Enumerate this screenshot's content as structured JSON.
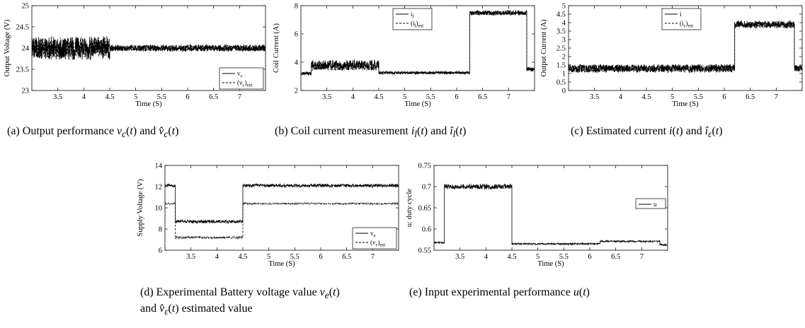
{
  "chart_data": [
    {
      "type": "line",
      "panel": "a",
      "ylabel": "Output Voltage (V)",
      "xlabel": "Time (S)",
      "xlim": [
        3.0,
        7.5
      ],
      "ylim": [
        23,
        25
      ],
      "xticks": [
        "3.5",
        "4",
        "4.5",
        "5",
        "5.5",
        "6",
        "6.5",
        "7"
      ],
      "yticks": [
        "23",
        "23.5",
        "24",
        "24.5",
        "25"
      ],
      "legend_position": "bottom-right",
      "series": [
        {
          "name": "v_c",
          "legend_main": "v",
          "legend_sub": "c",
          "style": "solid",
          "segments": [
            {
              "x": [
                3.0,
                4.5
              ],
              "mean": 24.0,
              "noise": 0.28
            },
            {
              "x": [
                4.5,
                7.5
              ],
              "mean": 24.0,
              "noise": 0.08
            }
          ]
        },
        {
          "name": "(v_c)_est",
          "legend_main": "(v",
          "legend_sub": "c",
          "legend_tail": ")",
          "legend_sub2": "est",
          "style": "dashed",
          "segments": [
            {
              "x": [
                3.0,
                4.5
              ],
              "mean": 24.0,
              "noise": 0.25
            },
            {
              "x": [
                4.5,
                7.5
              ],
              "mean": 24.0,
              "noise": 0.07
            }
          ]
        }
      ],
      "caption": "(a) Output performance v_c(t) and v̂_c(t)"
    },
    {
      "type": "line",
      "panel": "b",
      "ylabel": "Coil Current (A)",
      "xlabel": "Time (S)",
      "xlim": [
        3.0,
        7.5
      ],
      "ylim": [
        2,
        8
      ],
      "xticks": [
        "3.5",
        "4",
        "4.5",
        "5",
        "5.5",
        "6",
        "6.5",
        "7"
      ],
      "yticks": [
        "2",
        "4",
        "6",
        "8"
      ],
      "legend_position": "top-center",
      "series": [
        {
          "name": "i_l",
          "legend_main": "i",
          "legend_sub": "l",
          "style": "solid",
          "segments": [
            {
              "x": [
                3.0,
                3.2
              ],
              "mean": 3.2,
              "noise": 0.12
            },
            {
              "x": [
                3.2,
                4.5
              ],
              "mean": 3.8,
              "noise": 0.35
            },
            {
              "x": [
                4.5,
                6.25
              ],
              "mean": 3.25,
              "noise": 0.1
            },
            {
              "x": [
                6.25,
                7.35
              ],
              "mean": 7.5,
              "noise": 0.18
            },
            {
              "x": [
                7.35,
                7.5
              ],
              "mean": 3.5,
              "noise": 0.15
            }
          ]
        },
        {
          "name": "(i_l)_est",
          "legend_main": "(i",
          "legend_sub": "l",
          "legend_tail": ")",
          "legend_sub2": "est",
          "style": "dashed",
          "segments": [
            {
              "x": [
                3.0,
                3.2
              ],
              "mean": 3.2,
              "noise": 0.1
            },
            {
              "x": [
                3.2,
                4.5
              ],
              "mean": 3.7,
              "noise": 0.3
            },
            {
              "x": [
                4.5,
                6.25
              ],
              "mean": 3.25,
              "noise": 0.08
            },
            {
              "x": [
                6.25,
                7.35
              ],
              "mean": 7.45,
              "noise": 0.15
            },
            {
              "x": [
                7.35,
                7.5
              ],
              "mean": 3.5,
              "noise": 0.12
            }
          ]
        }
      ],
      "caption": "(b) Coil current measurement i_l(t) and î_l(t)"
    },
    {
      "type": "line",
      "panel": "c",
      "ylabel": "Output Current (A)",
      "xlabel": "Time (S)",
      "xlim": [
        3.0,
        7.5
      ],
      "ylim": [
        0,
        5
      ],
      "xticks": [
        "3.5",
        "4",
        "4.5",
        "5",
        "5.5",
        "6",
        "6.5",
        "7"
      ],
      "yticks": [
        "0",
        "0.5",
        "1",
        "1.5",
        "2",
        "2.5",
        "3",
        "3.5",
        "4",
        "4.5",
        "5"
      ],
      "legend_position": "top-center",
      "series": [
        {
          "name": "i",
          "legend_main": "i",
          "legend_sub": "",
          "style": "solid",
          "segments": [
            {
              "x": [
                3.0,
                6.2
              ],
              "mean": 1.3,
              "noise": 0.25
            },
            {
              "x": [
                6.2,
                7.35
              ],
              "mean": 3.9,
              "noise": 0.22
            },
            {
              "x": [
                7.35,
                7.5
              ],
              "mean": 1.3,
              "noise": 0.2
            }
          ]
        },
        {
          "name": "(i_ε)_est",
          "legend_main": "(i",
          "legend_sub": "ε",
          "legend_tail": ")",
          "legend_sub2": "est",
          "style": "dashed",
          "segments": [
            {
              "x": [
                3.0,
                6.2
              ],
              "mean": 1.3,
              "noise": 0.2
            },
            {
              "x": [
                6.2,
                7.35
              ],
              "mean": 3.85,
              "noise": 0.18
            },
            {
              "x": [
                7.35,
                7.5
              ],
              "mean": 1.3,
              "noise": 0.18
            }
          ]
        }
      ],
      "caption": "(c) Estimated current i(t) and î_ε(t)"
    },
    {
      "type": "line",
      "panel": "d",
      "ylabel": "Supply Voltage (V)",
      "xlabel": "Time (S)",
      "xlim": [
        3.0,
        7.5
      ],
      "ylim": [
        6,
        14
      ],
      "xticks": [
        "3.5",
        "4",
        "4.5",
        "5",
        "5.5",
        "6",
        "6.5",
        "7"
      ],
      "yticks": [
        "6",
        "8",
        "10",
        "12",
        "14"
      ],
      "legend_position": "bottom-right",
      "series": [
        {
          "name": "v_e",
          "legend_main": "v",
          "legend_sub": "e",
          "style": "solid",
          "segments": [
            {
              "x": [
                3.0,
                3.2
              ],
              "mean": 12.1,
              "noise": 0.15
            },
            {
              "x": [
                3.2,
                4.5
              ],
              "mean": 8.7,
              "noise": 0.15
            },
            {
              "x": [
                4.5,
                7.5
              ],
              "mean": 12.1,
              "noise": 0.15
            }
          ]
        },
        {
          "name": "(v_ε)_est",
          "legend_main": "(v",
          "legend_sub": "ε",
          "legend_tail": ")",
          "legend_sub2": "est",
          "style": "dashed",
          "segments": [
            {
              "x": [
                3.0,
                3.2
              ],
              "mean": 10.4,
              "noise": 0.08
            },
            {
              "x": [
                3.2,
                4.5
              ],
              "mean": 7.2,
              "noise": 0.12
            },
            {
              "x": [
                4.5,
                7.5
              ],
              "mean": 10.4,
              "noise": 0.08
            }
          ]
        }
      ],
      "caption_line1": "(d) Experimental Battery voltage value v_e(t)",
      "caption_line2": "and v̂_ε(t) estimated value"
    },
    {
      "type": "line",
      "panel": "e",
      "ylabel": "u: duty cycle",
      "xlabel": "Time (S)",
      "xlim": [
        3.0,
        7.5
      ],
      "ylim": [
        0.55,
        0.75
      ],
      "xticks": [
        "3.5",
        "4",
        "4.5",
        "5",
        "5.5",
        "6",
        "6.5",
        "7"
      ],
      "yticks": [
        "0.55",
        "0.6",
        "0.65",
        "0.7",
        "0.75"
      ],
      "legend_position": "center-right",
      "series": [
        {
          "name": "u",
          "legend_main": "u",
          "legend_sub": "",
          "style": "solid",
          "segments": [
            {
              "x": [
                3.0,
                3.2
              ],
              "mean": 0.568,
              "noise": 0.002
            },
            {
              "x": [
                3.2,
                4.5
              ],
              "mean": 0.7,
              "noise": 0.006
            },
            {
              "x": [
                4.5,
                6.2
              ],
              "mean": 0.565,
              "noise": 0.002
            },
            {
              "x": [
                6.2,
                7.35
              ],
              "mean": 0.571,
              "noise": 0.002
            },
            {
              "x": [
                7.35,
                7.5
              ],
              "mean": 0.563,
              "noise": 0.002
            }
          ]
        }
      ],
      "caption": "(e) Input experimental performance u(t)"
    }
  ]
}
